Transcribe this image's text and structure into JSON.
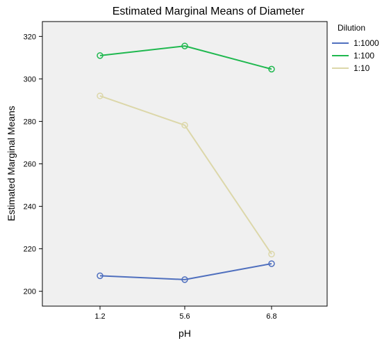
{
  "chart_data": {
    "type": "line",
    "title": "Estimated Marginal Means of Diameter",
    "xlabel": "pH",
    "ylabel": "Estimated Marginal Means",
    "categories": [
      "1.2",
      "5.6",
      "6.8"
    ],
    "ylim": [
      193,
      327
    ],
    "yticks": [
      200,
      220,
      240,
      260,
      280,
      300,
      320
    ],
    "grid": false,
    "legend": {
      "title": "Dilution",
      "position": "right"
    },
    "series": [
      {
        "name": "1:1000",
        "color": "#4f6fbe",
        "values": [
          207.3,
          205.5,
          213.0
        ]
      },
      {
        "name": "1:100",
        "color": "#1fb84f",
        "values": [
          311.0,
          315.5,
          304.6
        ]
      },
      {
        "name": "1:10",
        "color": "#dcd7a9",
        "values": [
          292.0,
          278.2,
          217.5
        ]
      }
    ],
    "plot_background": "#f0f0f0"
  }
}
